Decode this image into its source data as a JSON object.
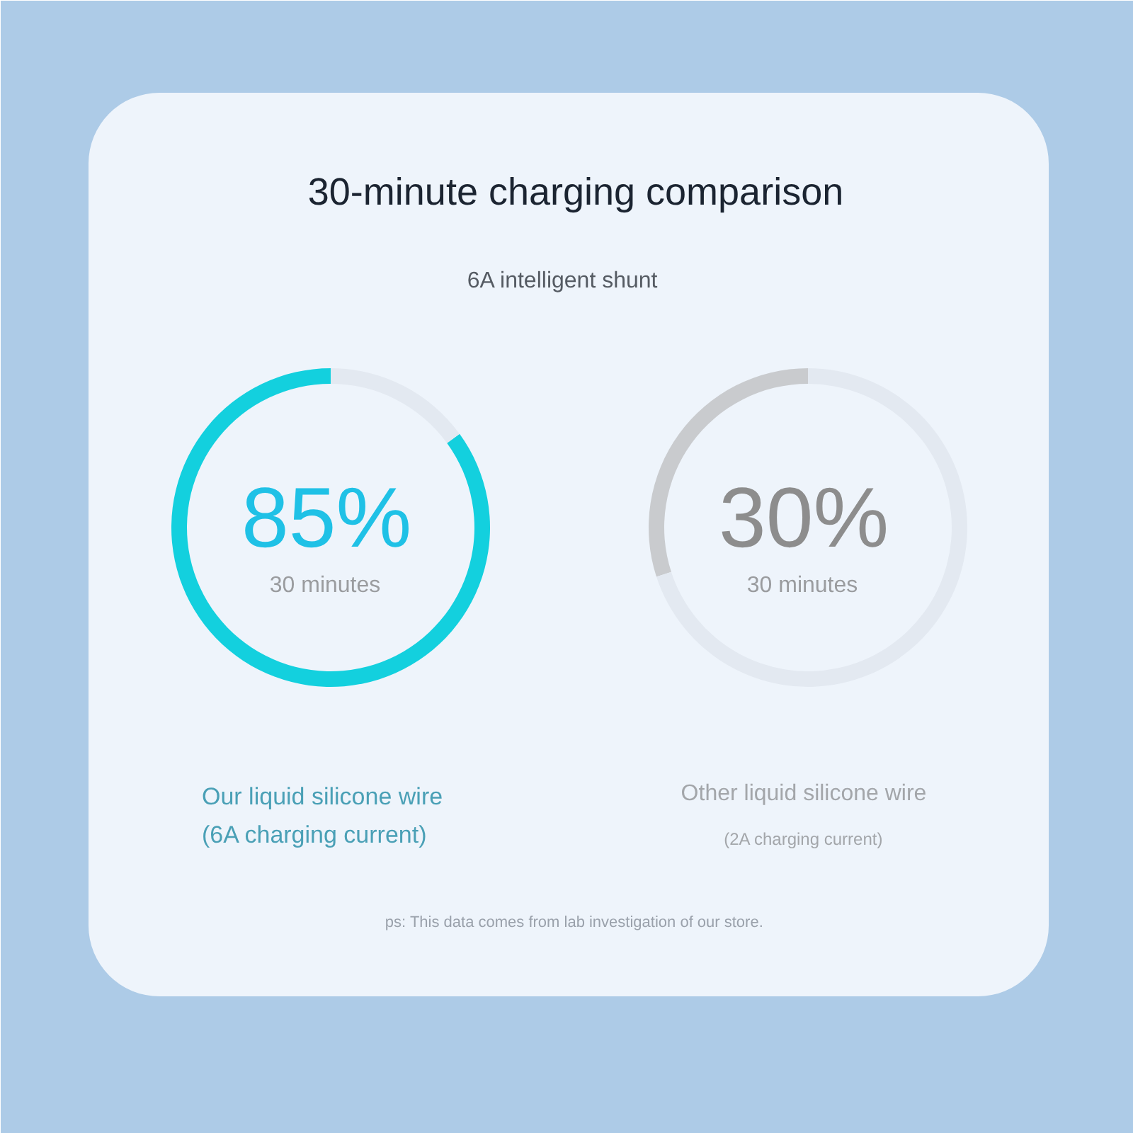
{
  "chart_data": [
    {
      "type": "donut",
      "title": "30-minute charging comparison",
      "subtitle": "6A intelligent shunt",
      "categories": [
        null,
        null
      ],
      "values": [
        85,
        15
      ],
      "colors": [
        "#13d0de",
        "#e3e9f1"
      ],
      "value_labels": [
        "85%",
        null
      ],
      "annotations": [
        "30 minutes",
        "Our liquid silicone wire",
        "(6A charging current)"
      ]
    },
    {
      "type": "donut",
      "categories": [
        null,
        null
      ],
      "values": [
        30,
        70
      ],
      "colors": [
        "#c9cbce",
        "#e3e9f1"
      ],
      "value_labels": [
        "30%",
        null
      ],
      "annotations": [
        "30 minutes",
        "Other liquid silicone wire",
        "(2A charging current)",
        "ps: This data comes from lab investigation of our store."
      ]
    }
  ]
}
